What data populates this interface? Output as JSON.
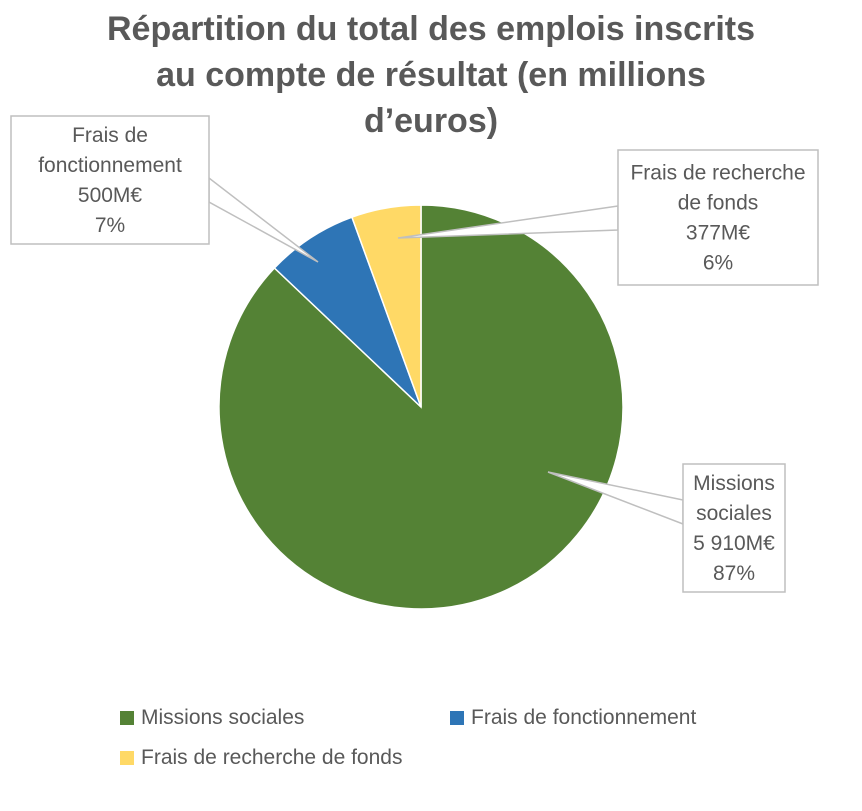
{
  "chart_data": {
    "type": "pie",
    "title": {
      "line1": "Répartition du total des emplois inscrits",
      "line2": "au compte de résultat (en millions",
      "line3": "d’euros)"
    },
    "slices": [
      {
        "label": "Missions sociales",
        "value": 5910,
        "value_label": "5 910M€",
        "percent_label": "87%",
        "color": "#548235",
        "callout": [
          "Missions",
          "sociales",
          "5 910M€",
          "87%"
        ]
      },
      {
        "label": "Frais de fonctionnement",
        "value": 500,
        "value_label": "500M€",
        "percent_label": "7%",
        "color": "#2e75b6",
        "callout": [
          "Frais de",
          "fonctionnement",
          "500M€",
          "7%"
        ]
      },
      {
        "label": "Frais de recherche de fonds",
        "value": 377,
        "value_label": "377M€",
        "percent_label": "6%",
        "color": "#ffd966",
        "callout": [
          "Frais de recherche",
          "de fonds",
          "377M€",
          "6%"
        ]
      }
    ],
    "legend_position": "bottom",
    "start_angle": "12 o'clock",
    "direction": "counter-clockwise for small slices"
  }
}
